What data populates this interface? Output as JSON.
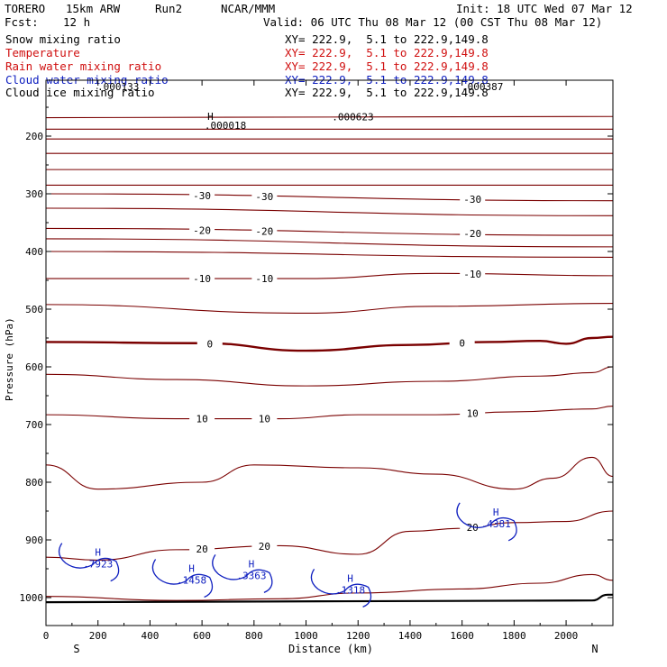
{
  "header": {
    "model": "TORERO",
    "resolution": "15km ARW",
    "run": "Run2",
    "org": "NCAR/MMM",
    "init": "Init: 18 UTC Wed 07 Mar 12",
    "fcst_label": "Fcst:",
    "fcst_value": "12 h",
    "valid": "Valid: 06 UTC Thu 08 Mar 12 (00 CST Thu 08 Mar 12)"
  },
  "fields": [
    {
      "name": "Snow mixing ratio",
      "xy": "XY= 222.9,  5.1 to 222.9,149.8",
      "color": "#000000"
    },
    {
      "name": "Temperature",
      "xy": "XY= 222.9,  5.1 to 222.9,149.8",
      "color": "#d01010"
    },
    {
      "name": "Rain water mixing ratio",
      "xy": "XY= 222.9,  5.1 to 222.9,149.8",
      "color": "#d01010"
    },
    {
      "name": "Cloud water mixing ratio",
      "xy": "XY= 222.9,  5.1 to 222.9,149.8",
      "color": "#1020c0"
    },
    {
      "name": "Cloud ice mixing ratio",
      "xy": "XY= 222.9,  5.1 to 222.9,149.8",
      "color": "#000000"
    }
  ],
  "colors": {
    "temperature": "#7a0000",
    "cloud_water": "#1020c0",
    "ground": "#000000"
  },
  "chart_data": {
    "type": "line",
    "xlabel": "Distance (km)",
    "ylabel": "Pressure (hPa)",
    "xlim": [
      0,
      2180
    ],
    "ylim": [
      1050,
      150
    ],
    "x_ticks": [
      0,
      200,
      400,
      600,
      800,
      1000,
      1200,
      1400,
      1600,
      1800,
      2000
    ],
    "y_ticks": [
      200,
      300,
      400,
      500,
      600,
      700,
      800,
      900,
      1000
    ],
    "left_end": "S",
    "right_end": "N",
    "temperature_contours": [
      {
        "label": "",
        "points": [
          [
            0,
            168
          ],
          [
            2180,
            166
          ]
        ]
      },
      {
        "label": "",
        "points": [
          [
            0,
            188
          ],
          [
            2180,
            188
          ]
        ]
      },
      {
        "label": "",
        "points": [
          [
            0,
            205
          ],
          [
            2180,
            205
          ]
        ]
      },
      {
        "label": "",
        "points": [
          [
            0,
            230
          ],
          [
            2180,
            230
          ]
        ]
      },
      {
        "label": "",
        "points": [
          [
            0,
            258
          ],
          [
            2180,
            258
          ]
        ]
      },
      {
        "label": "",
        "points": [
          [
            0,
            285
          ],
          [
            2180,
            285
          ]
        ]
      },
      {
        "label": "-30",
        "points": [
          [
            0,
            300
          ],
          [
            2180,
            312
          ]
        ]
      },
      {
        "label": "",
        "points": [
          [
            0,
            325
          ],
          [
            2180,
            338
          ]
        ]
      },
      {
        "label": "-20",
        "points": [
          [
            0,
            360
          ],
          [
            2180,
            372
          ]
        ]
      },
      {
        "label": "",
        "points": [
          [
            0,
            378
          ],
          [
            2180,
            392
          ]
        ]
      },
      {
        "label": "",
        "points": [
          [
            0,
            400
          ],
          [
            2180,
            410
          ]
        ]
      },
      {
        "label": "-10",
        "points": [
          [
            0,
            447
          ],
          [
            1000,
            447
          ],
          [
            1500,
            438
          ],
          [
            2180,
            442
          ]
        ]
      },
      {
        "label": "",
        "points": [
          [
            0,
            492
          ],
          [
            1000,
            507
          ],
          [
            1500,
            495
          ],
          [
            2180,
            490
          ]
        ]
      },
      {
        "label": "0",
        "points": [
          [
            0,
            557
          ],
          [
            600,
            559
          ],
          [
            1000,
            572
          ],
          [
            1400,
            562
          ],
          [
            1700,
            557
          ],
          [
            1900,
            555
          ],
          [
            2000,
            560
          ],
          [
            2100,
            550
          ],
          [
            2180,
            548
          ]
        ]
      },
      {
        "label": "",
        "points": [
          [
            0,
            613
          ],
          [
            500,
            622
          ],
          [
            1000,
            633
          ],
          [
            1500,
            625
          ],
          [
            1900,
            616
          ],
          [
            2100,
            610
          ],
          [
            2180,
            600
          ]
        ]
      },
      {
        "label": "10",
        "points": [
          [
            0,
            683
          ],
          [
            500,
            690
          ],
          [
            900,
            690
          ],
          [
            1200,
            683
          ],
          [
            1500,
            683
          ],
          [
            1800,
            678
          ],
          [
            2100,
            673
          ],
          [
            2180,
            668
          ]
        ]
      },
      {
        "label": "",
        "points": [
          [
            0,
            770
          ],
          [
            200,
            812
          ],
          [
            600,
            800
          ],
          [
            800,
            770
          ],
          [
            1200,
            775
          ],
          [
            1500,
            786
          ],
          [
            1800,
            812
          ],
          [
            1950,
            793
          ],
          [
            2100,
            757
          ],
          [
            2180,
            790
          ]
        ]
      },
      {
        "label": "20",
        "points": [
          [
            0,
            930
          ],
          [
            200,
            935
          ],
          [
            500,
            917
          ],
          [
            900,
            910
          ],
          [
            1200,
            925
          ],
          [
            1400,
            885
          ],
          [
            1600,
            880
          ],
          [
            1800,
            870
          ],
          [
            2000,
            868
          ],
          [
            2180,
            850
          ]
        ]
      },
      {
        "label": "",
        "points": [
          [
            0,
            998
          ],
          [
            500,
            1005
          ],
          [
            900,
            1002
          ],
          [
            1200,
            992
          ],
          [
            1600,
            985
          ],
          [
            1900,
            975
          ],
          [
            2100,
            960
          ],
          [
            2180,
            970
          ]
        ]
      }
    ],
    "ground_pressure": [
      [
        0,
        1008
      ],
      [
        2100,
        1005
      ],
      [
        2160,
        995
      ],
      [
        2180,
        995
      ]
    ],
    "cloud_water_maxima": [
      {
        "label": ".7923",
        "x": 200,
        "p": 940
      },
      {
        "label": ".1458",
        "x": 560,
        "p": 968
      },
      {
        "label": ".3363",
        "x": 790,
        "p": 960
      },
      {
        "label": ".1318",
        "x": 1170,
        "p": 985
      },
      {
        "label": ".4381",
        "x": 1730,
        "p": 870
      }
    ],
    "snow_maxima": [
      {
        "label": ".000018",
        "x": 690,
        "p": 175
      },
      {
        "label": ".000623",
        "x": 1180,
        "p": 160
      }
    ],
    "top_labels": [
      ".000133",
      ".000387"
    ]
  }
}
